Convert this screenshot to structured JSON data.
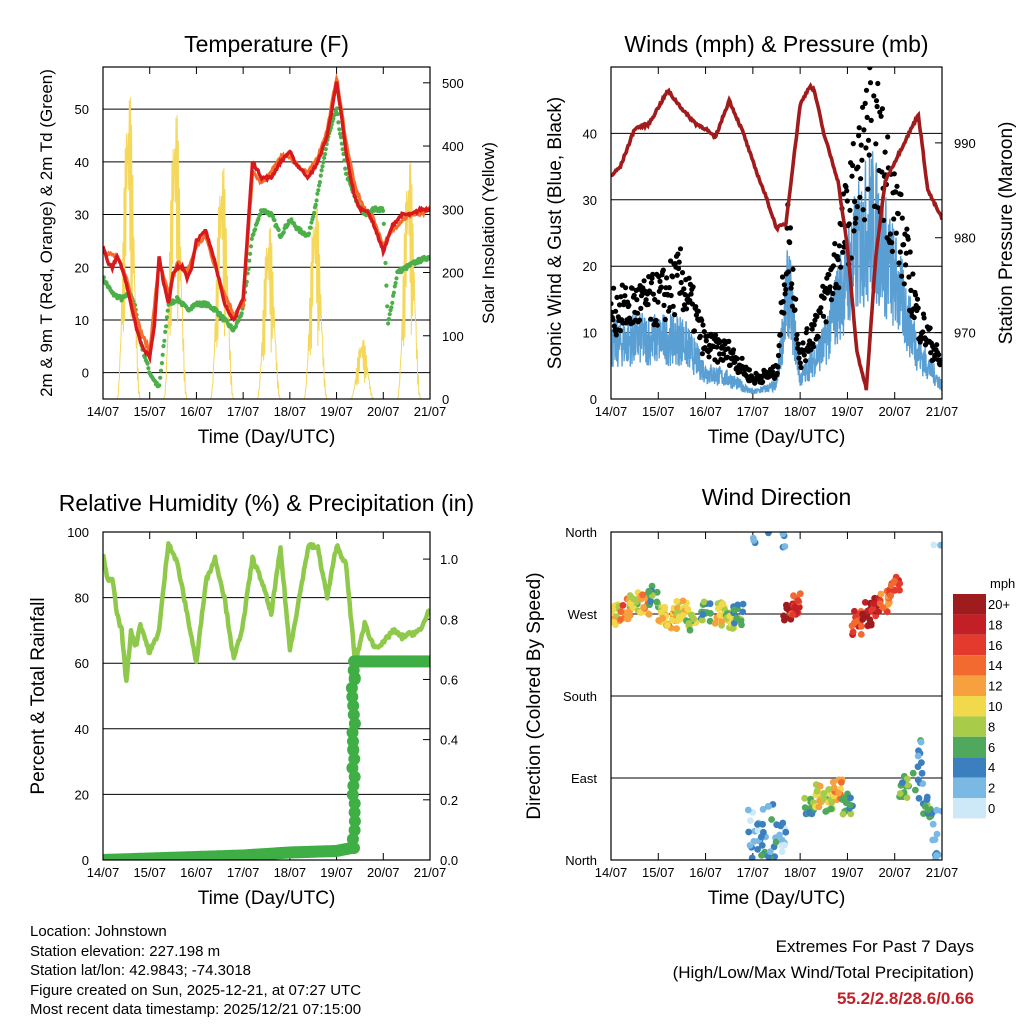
{
  "chart_data": [
    {
      "type": "line",
      "title": "Temperature (F)",
      "xlabel": "Time (Day/UTC)",
      "ylabel": "2m & 9m T (Red, Orange) & 2m Td (Green)",
      "y2label": "Solar Insolation (Yellow)",
      "ylim": [
        -5,
        58
      ],
      "y2lim": [
        0,
        525
      ],
      "x_ticks": [
        "14/07",
        "15/07",
        "16/07",
        "17/07",
        "18/07",
        "19/07",
        "20/07",
        "21/07"
      ],
      "y_ticks": [
        0,
        10,
        20,
        30,
        40,
        50
      ],
      "y2_ticks": [
        0,
        100,
        200,
        300,
        400,
        500
      ],
      "colors": {
        "t2m": "#d7191c",
        "t9m": "#f46d2d",
        "td": "#4daf4a",
        "solar": "#f5d75a"
      },
      "series": [
        {
          "name": "2m T",
          "x": [
            0,
            0.1,
            0.2,
            0.3,
            0.4,
            0.5,
            0.6,
            0.7,
            0.8,
            0.9,
            1,
            1.1,
            1.2,
            1.3,
            1.4,
            1.5,
            1.6,
            1.7,
            1.8,
            1.9,
            2,
            2.2,
            2.4,
            2.6,
            2.8,
            3,
            3.1,
            3.2,
            3.4,
            3.6,
            3.8,
            4,
            4.1,
            4.2,
            4.4,
            4.6,
            4.8,
            5,
            5.1,
            5.2,
            5.3,
            5.4,
            5.5,
            5.6,
            5.7,
            5.8,
            6,
            6.2,
            6.4,
            6.6,
            6.8,
            7
          ],
          "values": [
            24,
            21,
            20,
            22,
            20,
            17,
            13,
            9,
            6,
            4,
            3,
            9,
            22,
            17,
            13,
            19,
            20,
            20,
            18,
            20,
            25,
            27,
            21,
            13,
            10,
            14,
            27,
            40,
            37,
            37,
            40,
            42,
            40,
            39,
            37,
            40,
            45,
            55,
            49,
            42,
            37,
            33,
            31,
            31,
            30,
            28,
            23,
            28,
            30,
            30,
            31,
            31
          ]
        },
        {
          "name": "9m T",
          "x": [
            0,
            0.3,
            0.5,
            0.8,
            1,
            1.2,
            1.4,
            1.6,
            1.8,
            2,
            2.2,
            2.4,
            2.6,
            2.8,
            3,
            3.2,
            3.4,
            3.6,
            3.8,
            4,
            4.2,
            4.4,
            4.6,
            4.8,
            5,
            5.2,
            5.4,
            5.6,
            5.8,
            6,
            6.2,
            6.4,
            6.6,
            6.8,
            7
          ],
          "values": [
            23,
            22,
            18,
            8,
            4,
            21,
            15,
            21,
            19,
            24,
            26,
            20,
            15,
            11,
            13,
            38,
            36,
            38,
            41,
            41,
            39,
            38,
            41,
            46,
            56,
            44,
            35,
            31,
            29,
            24,
            27,
            29,
            30,
            30,
            31
          ]
        },
        {
          "name": "2m Td",
          "x": [
            0,
            0.2,
            0.4,
            0.6,
            0.7,
            0.8,
            0.9,
            1,
            1.2,
            1.4,
            1.6,
            1.8,
            2,
            2.2,
            2.4,
            2.6,
            2.8,
            3,
            3.2,
            3.4,
            3.6,
            3.8,
            4,
            4.2,
            4.4,
            4.6,
            4.8,
            5,
            5.2,
            5.4,
            5.6,
            5.8,
            6,
            6.1,
            6.3,
            6.5,
            6.7,
            7
          ],
          "values": [
            18,
            15,
            14,
            15,
            12,
            6,
            3,
            0,
            -3,
            13,
            14,
            12,
            13,
            13,
            12,
            10,
            8,
            12,
            26,
            31,
            30,
            26,
            29,
            27,
            26,
            34,
            44,
            50,
            38,
            33,
            30,
            31,
            31,
            9,
            19,
            20,
            21,
            22
          ]
        },
        {
          "name": "Solar",
          "x": [
            0.3,
            0.47,
            0.8,
            1.3,
            1.47,
            1.8,
            2.3,
            2.47,
            2.8,
            3.3,
            3.47,
            3.8,
            4.3,
            4.47,
            4.8,
            5.3,
            5.47,
            5.8,
            6.3,
            6.47,
            6.8
          ],
          "values": [
            0,
            510,
            0,
            0,
            480,
            0,
            0,
            390,
            0,
            0,
            290,
            0,
            0,
            330,
            0,
            0,
            100,
            0,
            0,
            400,
            0
          ]
        }
      ]
    },
    {
      "type": "scatter",
      "title": "Winds (mph) & Pressure (mb)",
      "xlabel": "Time (Day/UTC)",
      "ylabel": "Sonic Wind & Gust (Blue, Black)",
      "y2label": "Station Pressure (Maroon)",
      "ylim": [
        0,
        50
      ],
      "y2lim": [
        963,
        998
      ],
      "x_ticks": [
        "14/07",
        "15/07",
        "16/07",
        "17/07",
        "18/07",
        "19/07",
        "20/07",
        "21/07"
      ],
      "y_ticks": [
        0,
        10,
        20,
        30,
        40
      ],
      "y2_ticks": [
        970,
        980,
        990
      ],
      "colors": {
        "wind": "#5a9fd4",
        "gust": "#000000",
        "pressure": "#a11b1d"
      },
      "series": [
        {
          "name": "Gust",
          "x": [
            0,
            0.5,
            1,
            1.5,
            2,
            2.5,
            3,
            3.5,
            3.75,
            4,
            4.5,
            5,
            5.5,
            6,
            6.5,
            7
          ],
          "values": [
            13,
            14,
            15,
            18,
            8,
            7,
            3,
            4,
            25,
            6,
            14,
            27,
            41,
            29,
            12,
            5
          ]
        },
        {
          "name": "Wind",
          "x": [
            0,
            0.5,
            1,
            1.5,
            2,
            2.5,
            3,
            3.5,
            3.75,
            4,
            4.5,
            5,
            5.5,
            6,
            6.5,
            7
          ],
          "values": [
            8,
            9,
            9,
            9,
            4,
            3,
            1,
            2,
            17,
            3,
            8,
            19,
            27,
            18,
            7,
            2
          ]
        },
        {
          "name": "Pressure",
          "x": [
            0,
            0.2,
            0.5,
            0.8,
            1.2,
            1.6,
            1.8,
            2,
            2.2,
            2.5,
            2.8,
            3,
            3.3,
            3.5,
            3.7,
            4,
            4.2,
            4.3,
            4.5,
            4.8,
            5,
            5.2,
            5.4,
            5.6,
            5.8,
            6.2,
            6.5,
            6.7,
            7
          ],
          "values": [
            986.5,
            987.5,
            991.5,
            992,
            995.5,
            993,
            992,
            991.5,
            990.5,
            994.5,
            991,
            988,
            984,
            981,
            981.5,
            994,
            996,
            995.5,
            991,
            986,
            979,
            968,
            964,
            978,
            986,
            990,
            993,
            985,
            982
          ]
        }
      ]
    },
    {
      "type": "line",
      "title": "Relative Humidity (%) & Precipitation (in)",
      "xlabel": "Time (Day/UTC)",
      "ylabel": "Percent & Total Rainfall",
      "ylim": [
        0,
        100
      ],
      "y2lim": [
        0,
        1.09
      ],
      "x_ticks": [
        "14/07",
        "15/07",
        "16/07",
        "17/07",
        "18/07",
        "19/07",
        "20/07",
        "21/07"
      ],
      "y_ticks": [
        0,
        20,
        40,
        60,
        80,
        100
      ],
      "y2_ticks": [
        "0.0",
        "0.2",
        "0.4",
        "0.6",
        "0.8",
        "1.0"
      ],
      "colors": {
        "rh": "#8fc94b",
        "precip": "#3fae45"
      },
      "series": [
        {
          "name": "Relative Humidity",
          "x": [
            0,
            0.1,
            0.2,
            0.3,
            0.4,
            0.5,
            0.6,
            0.7,
            0.8,
            1,
            1.2,
            1.4,
            1.6,
            1.8,
            2,
            2.2,
            2.4,
            2.6,
            2.8,
            3,
            3.2,
            3.4,
            3.6,
            3.8,
            4,
            4.2,
            4.4,
            4.6,
            4.8,
            5,
            5.2,
            5.4,
            5.6,
            5.8,
            6,
            6.2,
            6.4,
            6.6,
            6.8,
            7
          ],
          "values": [
            93,
            85,
            86,
            75,
            70,
            54,
            70,
            65,
            72,
            63,
            70,
            97,
            90,
            75,
            60,
            85,
            92,
            80,
            61,
            72,
            92,
            85,
            75,
            95,
            64,
            80,
            96,
            95,
            80,
            96,
            90,
            60,
            72,
            65,
            66,
            70,
            68,
            69,
            70,
            77
          ]
        },
        {
          "name": "Total Precipitation",
          "x": [
            0,
            1,
            2,
            3,
            4,
            5,
            5.32,
            5.34,
            5.36,
            5.38,
            5.4,
            5.5,
            6,
            7
          ],
          "values": [
            0,
            0.005,
            0.01,
            0.015,
            0.025,
            0.03,
            0.04,
            0.27,
            0.4,
            0.55,
            0.66,
            0.66,
            0.66,
            0.66
          ]
        }
      ]
    },
    {
      "type": "scatter",
      "title": "Wind Direction",
      "xlabel": "Time (Day/UTC)",
      "ylabel": "Direction (Colored By Speed)",
      "x_ticks": [
        "14/07",
        "15/07",
        "16/07",
        "17/07",
        "18/07",
        "19/07",
        "20/07",
        "21/07"
      ],
      "y_ticks": [
        "North",
        "West",
        "South",
        "East",
        "North"
      ],
      "y_tick_degrees": [
        360,
        270,
        180,
        90,
        0
      ],
      "legend": {
        "title": "mph",
        "labels": [
          "20+",
          "18",
          "16",
          "14",
          "12",
          "10",
          "8",
          "6",
          "4",
          "2",
          "0"
        ],
        "colors": [
          "#9e1b1e",
          "#c22026",
          "#e33a2d",
          "#f26a30",
          "#f7a040",
          "#f2d84b",
          "#a8cc4a",
          "#4fa85b",
          "#3b7fbf",
          "#7ab9e3",
          "#cde9f8"
        ]
      },
      "series": [
        {
          "name": "Direction",
          "x": [
            0.1,
            0.3,
            0.5,
            0.7,
            0.9,
            1.1,
            1.3,
            1.5,
            1.7,
            2.0,
            2.3,
            2.5,
            2.7,
            3.0,
            3.2,
            3.4,
            3.6,
            3.75,
            3.9,
            4.2,
            4.4,
            4.6,
            4.8,
            5.0,
            5.2,
            5.4,
            5.6,
            5.8,
            6.0,
            6.2,
            6.5,
            6.7,
            6.9
          ],
          "degrees": [
            270,
            275,
            285,
            280,
            290,
            270,
            265,
            275,
            265,
            275,
            270,
            260,
            270,
            20,
            40,
            30,
            15,
            275,
            280,
            55,
            70,
            65,
            75,
            60,
            260,
            270,
            275,
            285,
            300,
            80,
            100,
            60,
            20
          ],
          "speeds": [
            10,
            14,
            8,
            12,
            6,
            10,
            12,
            10,
            8,
            6,
            10,
            8,
            6,
            2,
            4,
            4,
            2,
            20,
            16,
            6,
            10,
            8,
            12,
            6,
            16,
            20,
            18,
            14,
            16,
            6,
            4,
            6,
            2
          ]
        }
      ]
    }
  ],
  "meta": {
    "location": "Location: Johnstown",
    "elevation": "Station elevation: 227.198 m",
    "latlon": "Station lat/lon: 42.9843; -74.3018",
    "created": "Figure created on Sun, 2025-12-21, at 07:27 UTC",
    "recent": "Most recent data timestamp: 2025/12/21 07:15:00"
  },
  "extremes": {
    "line1": "Extremes For Past 7 Days",
    "line2": "(High/Low/Max Wind/Total Precipitation)",
    "values": "55.2/2.8/28.6/0.66"
  }
}
